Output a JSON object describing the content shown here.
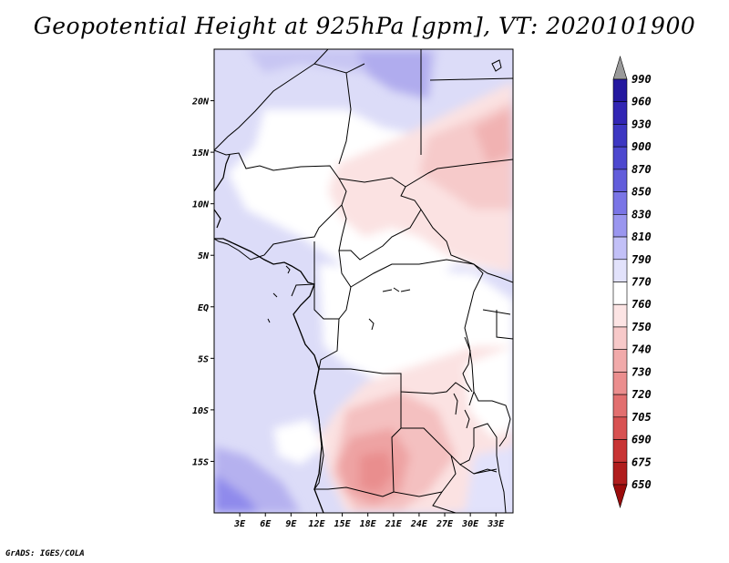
{
  "title": "Geopotential Height at 925hPa [gpm], VT: 2020101900",
  "credit": "GrADS: IGES/COLA",
  "map": {
    "lon_labels": [
      "3E",
      "6E",
      "9E",
      "12E",
      "15E",
      "18E",
      "21E",
      "24E",
      "27E",
      "30E",
      "33E"
    ],
    "lon_values": [
      3,
      6,
      9,
      12,
      15,
      18,
      21,
      24,
      27,
      30,
      33
    ],
    "lat_labels": [
      "20N",
      "15N",
      "10N",
      "5N",
      "EQ",
      "5S",
      "10S",
      "15S"
    ],
    "lat_values": [
      20,
      15,
      10,
      5,
      0,
      -5,
      -10,
      -15
    ],
    "lon_range": [
      0,
      35
    ],
    "lat_range": [
      -20,
      25
    ]
  },
  "colorbar": {
    "levels": [
      "990",
      "960",
      "930",
      "900",
      "870",
      "850",
      "830",
      "810",
      "790",
      "770",
      "760",
      "750",
      "740",
      "730",
      "720",
      "705",
      "690",
      "675",
      "650"
    ],
    "colors": [
      "#1a009f",
      "#24189f",
      "#3226b4",
      "#3d37c2",
      "#4d48cf",
      "#625ddb",
      "#7a75e6",
      "#9a96ef",
      "#c2c0f7",
      "#e2e2fb",
      "#ffffff",
      "#fce4e4",
      "#f7c9c9",
      "#f1aaaa",
      "#eb8e8e",
      "#e26f6f",
      "#d85252",
      "#c83434",
      "#b01d1d",
      "#9b0c0c"
    ],
    "top_arrow_color": "#9a9a9a"
  }
}
